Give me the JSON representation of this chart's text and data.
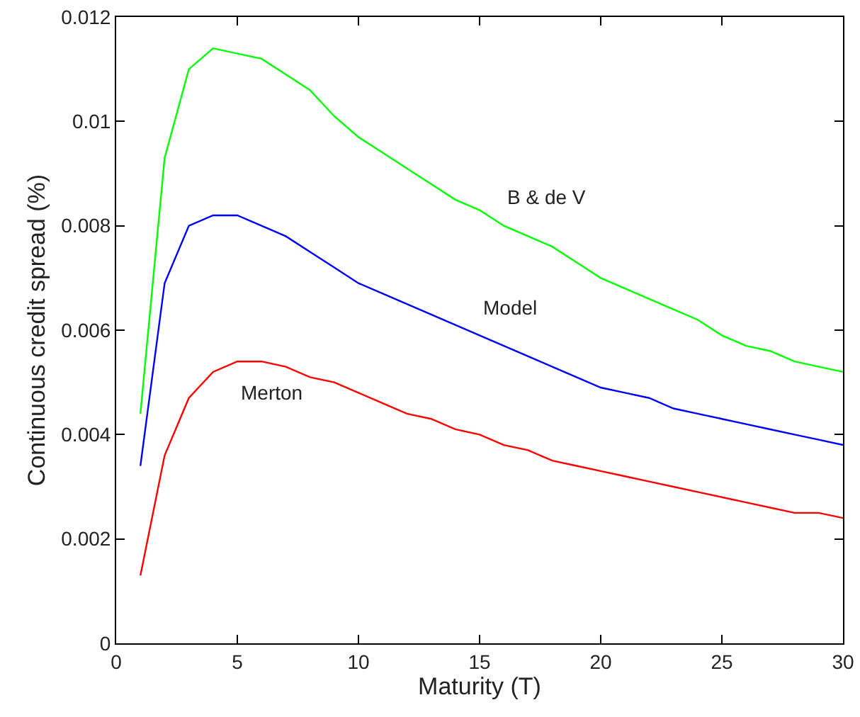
{
  "chart_data": {
    "type": "line",
    "xlabel": "Maturity (T)",
    "ylabel": "Continuous credit spread (%)",
    "x": [
      1,
      2,
      3,
      4,
      5,
      6,
      7,
      8,
      9,
      10,
      11,
      12,
      13,
      14,
      15,
      16,
      17,
      18,
      19,
      20,
      21,
      22,
      23,
      24,
      25,
      26,
      27,
      28,
      29,
      30
    ],
    "series": [
      {
        "name": "B & de V",
        "color": "#00ff00",
        "values": [
          0.0044,
          0.0093,
          0.011,
          0.0114,
          0.0113,
          0.0112,
          0.0109,
          0.0106,
          0.0101,
          0.0097,
          0.0094,
          0.0091,
          0.0088,
          0.0085,
          0.0083,
          0.008,
          0.0078,
          0.0076,
          0.0073,
          0.007,
          0.0068,
          0.0066,
          0.0064,
          0.0062,
          0.0059,
          0.0057,
          0.0056,
          0.0054,
          0.0053,
          0.0052
        ]
      },
      {
        "name": "Model",
        "color": "#0000ff",
        "values": [
          0.0034,
          0.0069,
          0.008,
          0.0082,
          0.0082,
          0.008,
          0.0078,
          0.0075,
          0.0072,
          0.0069,
          0.0067,
          0.0065,
          0.0063,
          0.0061,
          0.0059,
          0.0057,
          0.0055,
          0.0053,
          0.0051,
          0.0049,
          0.0048,
          0.0047,
          0.0045,
          0.0044,
          0.0043,
          0.0042,
          0.0041,
          0.004,
          0.0039,
          0.0038
        ]
      },
      {
        "name": "Merton",
        "color": "#ff0000",
        "values": [
          0.0013,
          0.0036,
          0.0047,
          0.0052,
          0.0054,
          0.0054,
          0.0053,
          0.0051,
          0.005,
          0.0048,
          0.0046,
          0.0044,
          0.0043,
          0.0041,
          0.004,
          0.0038,
          0.0037,
          0.0035,
          0.0034,
          0.0033,
          0.0032,
          0.0031,
          0.003,
          0.0029,
          0.0028,
          0.0027,
          0.0026,
          0.0025,
          0.0025,
          0.0024
        ]
      }
    ],
    "xlim": [
      0,
      30
    ],
    "xticks": [
      0,
      5,
      10,
      15,
      20,
      25,
      30
    ],
    "ylim": [
      0,
      0.012
    ],
    "yticks": [
      0,
      0.002,
      0.004,
      0.006,
      0.008,
      0.01,
      0.012
    ],
    "grid": false,
    "legend": false,
    "marker": "none",
    "line_style": "solid"
  }
}
